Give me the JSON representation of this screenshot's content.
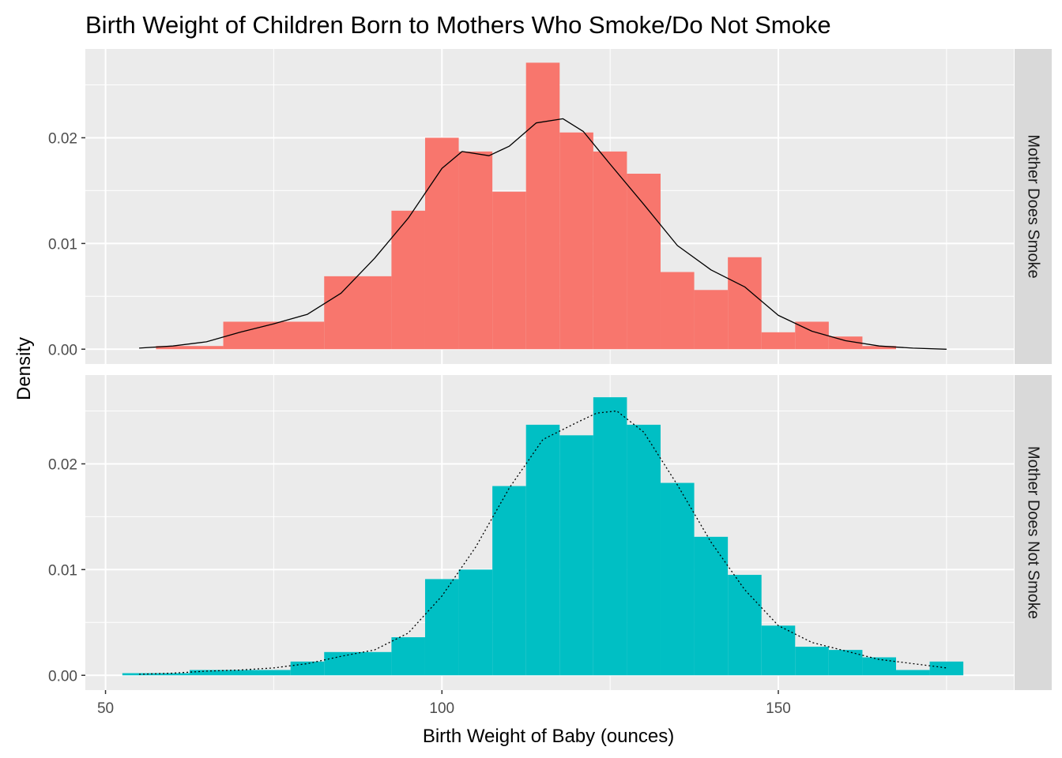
{
  "chart_data": {
    "type": "bar",
    "title": "Birth Weight of Children Born to Mothers Who Smoke/Do Not Smoke",
    "xlabel": "Birth Weight of Baby (ounces)",
    "ylabel": "Density",
    "xlim": [
      47,
      185
    ],
    "x_ticks": [
      50,
      100,
      150
    ],
    "x_minor_ticks": [
      75,
      125,
      175
    ],
    "bin_width": 5,
    "grid": true,
    "legend": "none",
    "panels": [
      {
        "strip_label": "Mother Does Smoke",
        "fill": "#F8766D",
        "ylim": [
          -0.0014,
          0.0284
        ],
        "y_ticks": [
          0.0,
          0.01,
          0.02
        ],
        "y_tick_labels": [
          "0.00",
          "0.01",
          "0.02"
        ],
        "y_minor_ticks": [
          0.005,
          0.015,
          0.025
        ],
        "bins": [
          {
            "x0": 57.5,
            "x1": 67.5,
            "density": 0.0003
          },
          {
            "x0": 67.5,
            "x1": 82.5,
            "density": 0.0026
          },
          {
            "x0": 82.5,
            "x1": 92.5,
            "density": 0.0069
          },
          {
            "x0": 92.5,
            "x1": 97.5,
            "density": 0.0131
          },
          {
            "x0": 97.5,
            "x1": 102.5,
            "density": 0.02
          },
          {
            "x0": 102.5,
            "x1": 107.5,
            "density": 0.0187
          },
          {
            "x0": 107.5,
            "x1": 112.5,
            "density": 0.0149
          },
          {
            "x0": 112.5,
            "x1": 117.5,
            "density": 0.0271
          },
          {
            "x0": 117.5,
            "x1": 122.5,
            "density": 0.0205
          },
          {
            "x0": 122.5,
            "x1": 127.5,
            "density": 0.0187
          },
          {
            "x0": 127.5,
            "x1": 132.5,
            "density": 0.0166
          },
          {
            "x0": 132.5,
            "x1": 137.5,
            "density": 0.0073
          },
          {
            "x0": 137.5,
            "x1": 142.5,
            "density": 0.0056
          },
          {
            "x0": 142.5,
            "x1": 147.5,
            "density": 0.0087
          },
          {
            "x0": 147.5,
            "x1": 152.5,
            "density": 0.0016
          },
          {
            "x0": 152.5,
            "x1": 157.5,
            "density": 0.0026
          },
          {
            "x0": 157.5,
            "x1": 162.5,
            "density": 0.0012
          },
          {
            "x0": 162.5,
            "x1": 167.5,
            "density": 0.0003
          }
        ],
        "density_curve": {
          "linetype": "solid",
          "x": [
            55,
            60,
            65,
            70,
            75,
            80,
            85,
            90,
            95,
            100,
            103,
            107,
            110,
            114,
            118,
            121,
            125,
            130,
            135,
            140,
            145,
            150,
            155,
            160,
            165,
            170,
            175
          ],
          "y": [
            0.0001,
            0.0003,
            0.0007,
            0.0016,
            0.0024,
            0.0033,
            0.0053,
            0.0086,
            0.0124,
            0.0171,
            0.0187,
            0.0183,
            0.0192,
            0.0214,
            0.0218,
            0.0206,
            0.0175,
            0.0137,
            0.0098,
            0.0075,
            0.0059,
            0.0032,
            0.0017,
            0.0008,
            0.0003,
            0.0001,
            0.0
          ]
        }
      },
      {
        "strip_label": "Mother Does Not Smoke",
        "fill": "#00BFC4",
        "ylim": [
          -0.0014,
          0.0284
        ],
        "y_ticks": [
          0.0,
          0.01,
          0.02
        ],
        "y_tick_labels": [
          "0.00",
          "0.01",
          "0.02"
        ],
        "y_minor_ticks": [
          0.005,
          0.015,
          0.025
        ],
        "bins": [
          {
            "x0": 52.5,
            "x1": 62.5,
            "density": 0.0002
          },
          {
            "x0": 62.5,
            "x1": 77.5,
            "density": 0.0005
          },
          {
            "x0": 77.5,
            "x1": 82.5,
            "density": 0.0013
          },
          {
            "x0": 82.5,
            "x1": 92.5,
            "density": 0.0022
          },
          {
            "x0": 92.5,
            "x1": 97.5,
            "density": 0.0036
          },
          {
            "x0": 97.5,
            "x1": 102.5,
            "density": 0.0091
          },
          {
            "x0": 102.5,
            "x1": 107.5,
            "density": 0.01
          },
          {
            "x0": 107.5,
            "x1": 112.5,
            "density": 0.0179
          },
          {
            "x0": 112.5,
            "x1": 117.5,
            "density": 0.0237
          },
          {
            "x0": 117.5,
            "x1": 122.5,
            "density": 0.0227
          },
          {
            "x0": 122.5,
            "x1": 127.5,
            "density": 0.0263
          },
          {
            "x0": 127.5,
            "x1": 132.5,
            "density": 0.0237
          },
          {
            "x0": 132.5,
            "x1": 137.5,
            "density": 0.0182
          },
          {
            "x0": 137.5,
            "x1": 142.5,
            "density": 0.0131
          },
          {
            "x0": 142.5,
            "x1": 147.5,
            "density": 0.0095
          },
          {
            "x0": 147.5,
            "x1": 152.5,
            "density": 0.0047
          },
          {
            "x0": 152.5,
            "x1": 157.5,
            "density": 0.0027
          },
          {
            "x0": 157.5,
            "x1": 162.5,
            "density": 0.0024
          },
          {
            "x0": 162.5,
            "x1": 167.5,
            "density": 0.0017
          },
          {
            "x0": 167.5,
            "x1": 172.5,
            "density": 0.0005
          },
          {
            "x0": 172.5,
            "x1": 177.5,
            "density": 0.0013
          }
        ],
        "density_curve": {
          "linetype": "dotted",
          "x": [
            55,
            60,
            65,
            70,
            75,
            80,
            85,
            90,
            95,
            100,
            105,
            110,
            115,
            120,
            123,
            126,
            130,
            135,
            140,
            145,
            150,
            155,
            160,
            165,
            170,
            175
          ],
          "y": [
            0.0001,
            0.0002,
            0.0004,
            0.0005,
            0.0007,
            0.0011,
            0.0018,
            0.0024,
            0.004,
            0.0075,
            0.0121,
            0.0177,
            0.0223,
            0.0239,
            0.0248,
            0.025,
            0.023,
            0.018,
            0.0126,
            0.0081,
            0.0047,
            0.0031,
            0.0023,
            0.0015,
            0.0011,
            0.0007
          ]
        }
      }
    ]
  }
}
